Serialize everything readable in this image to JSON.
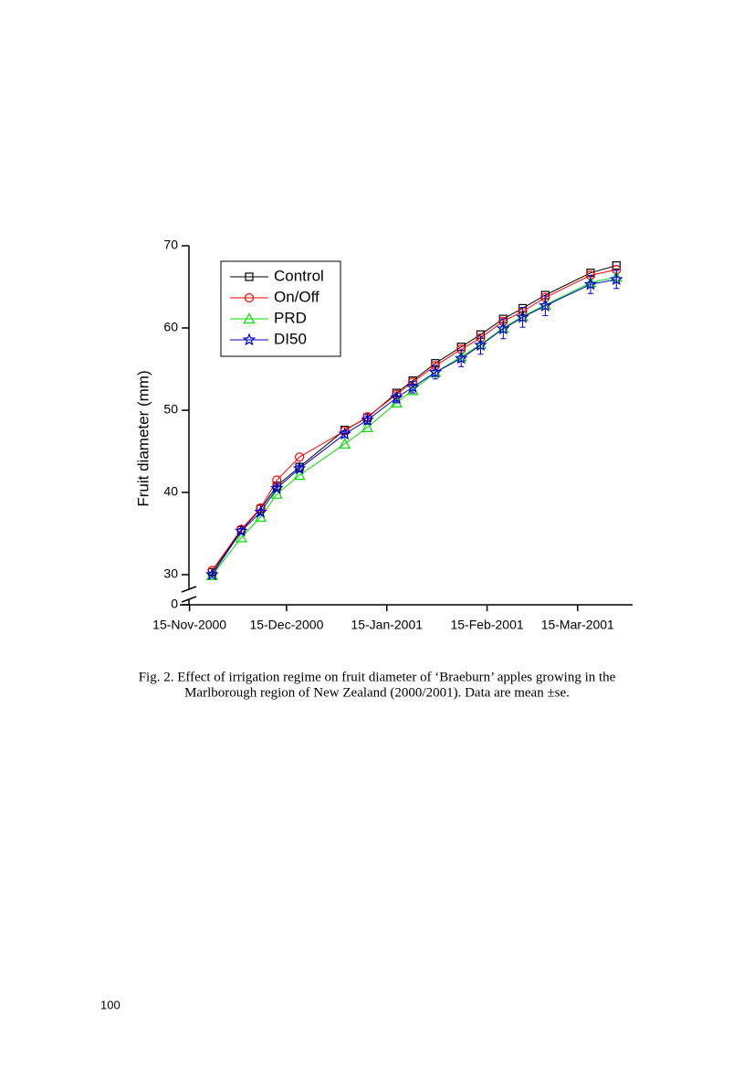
{
  "chart_data": {
    "type": "line",
    "y_label": "Fruit diameter (mm)",
    "x": [
      "2000-11-22",
      "2000-12-01",
      "2000-12-07",
      "2000-12-12",
      "2000-12-19",
      "2001-01-02",
      "2001-01-09",
      "2001-01-18",
      "2001-01-23",
      "2001-01-30",
      "2001-02-07",
      "2001-02-13",
      "2001-02-20",
      "2001-02-26",
      "2001-03-05",
      "2001-03-19",
      "2001-03-27"
    ],
    "series": [
      {
        "name": "Control",
        "color": "#000000",
        "marker": "square",
        "values": [
          30.3,
          35.4,
          38.0,
          40.8,
          43.1,
          47.6,
          49.1,
          52.1,
          53.6,
          55.7,
          57.7,
          59.2,
          61.1,
          62.4,
          64.0,
          66.7,
          67.6
        ]
      },
      {
        "name": "On/Off",
        "color": "#ff0000",
        "marker": "circle",
        "values": [
          30.5,
          35.5,
          38.1,
          41.5,
          44.3,
          47.5,
          49.2,
          51.9,
          53.4,
          55.4,
          57.4,
          58.8,
          60.8,
          62.0,
          63.7,
          66.4,
          67.1
        ]
      },
      {
        "name": "PRD",
        "color": "#00dd00",
        "marker": "triangle",
        "values": [
          29.3,
          34.5,
          37.0,
          39.8,
          42.1,
          45.9,
          47.9,
          50.9,
          52.4,
          54.6,
          56.5,
          58.0,
          60.0,
          61.4,
          62.8,
          65.5,
          66.2
        ]
      },
      {
        "name": "DI50",
        "color": "#0000cc",
        "marker": "star",
        "values": [
          30.0,
          35.3,
          37.6,
          40.5,
          42.9,
          47.1,
          48.8,
          51.5,
          52.8,
          54.6,
          56.3,
          57.9,
          59.9,
          61.3,
          62.7,
          65.3,
          65.9
        ],
        "errors": [
          0.3,
          0.3,
          0.3,
          0.3,
          0.4,
          0.4,
          0.5,
          0.6,
          0.7,
          0.8,
          1.0,
          1.1,
          1.2,
          1.2,
          1.2,
          1.1,
          1.1
        ]
      }
    ],
    "xlim": [
      "2000-11-12",
      "2001-04-01"
    ],
    "xticks": [
      {
        "value": "2000-11-15",
        "label": "15-Nov-2000"
      },
      {
        "value": "2000-12-15",
        "label": "15-Dec-2000"
      },
      {
        "value": "2001-01-15",
        "label": "15-Jan-2001"
      },
      {
        "value": "2001-02-15",
        "label": "15-Feb-2001"
      },
      {
        "value": "2001-03-15",
        "label": "15-Mar-2001"
      }
    ],
    "ylim": [
      0,
      70
    ],
    "y_break": [
      0,
      30
    ],
    "yticks": [
      0,
      30,
      40,
      50,
      60,
      70
    ],
    "legend": "top-left"
  },
  "caption": [
    "Fig. 2. Effect of irrigation regime on fruit diameter of ‘Braeburn’ apples growing in the",
    "Marlborough region of New Zealand (2000/2001). Data are mean ±se."
  ],
  "page_number": "100"
}
